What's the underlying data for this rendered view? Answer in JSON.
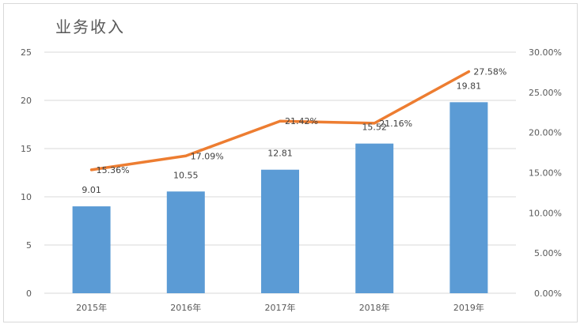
{
  "chart_data": {
    "type": "bar",
    "title": "业务收入",
    "categories": [
      "2015年",
      "2016年",
      "2017年",
      "2018年",
      "2019年"
    ],
    "series": [
      {
        "type": "bar",
        "axis": "left",
        "values": [
          9.01,
          10.55,
          12.81,
          15.52,
          19.81
        ],
        "labels": [
          "9.01",
          "10.55",
          "12.81",
          "15.52",
          "19.81"
        ],
        "color": "#5b9bd5"
      },
      {
        "type": "line",
        "axis": "right",
        "values": [
          15.36,
          17.09,
          21.42,
          21.16,
          27.58
        ],
        "labels": [
          "15.36%",
          "17.09%",
          "21.42%",
          "21.16%",
          "27.58%"
        ],
        "color": "#ed7d31"
      }
    ],
    "y_left": {
      "range": [
        0,
        25
      ],
      "ticks": [
        "0",
        "5",
        "10",
        "15",
        "20",
        "25"
      ]
    },
    "y_right": {
      "range": [
        0,
        30
      ],
      "ticks": [
        "0.00%",
        "5.00%",
        "10.00%",
        "15.00%",
        "20.00%",
        "25.00%",
        "30.00%"
      ]
    },
    "grid": true,
    "legend": "none",
    "colors": {
      "gridline": "#d9d9d9",
      "axis_text": "#595959"
    }
  }
}
